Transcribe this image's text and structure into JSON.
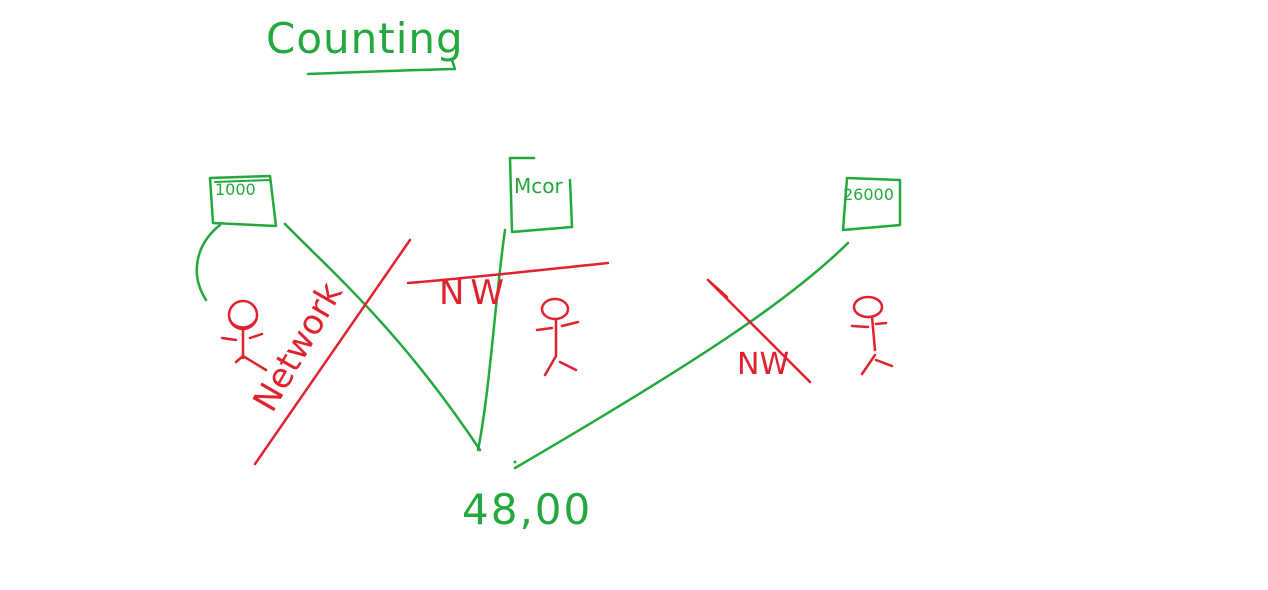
{
  "title": "Counting",
  "colors": {
    "ink_green": "#22a83c",
    "ink_red": "#e0222e",
    "background": "#ffffff"
  },
  "boxes": [
    {
      "label": "1000"
    },
    {
      "label": "Mcor"
    },
    {
      "label": "26000"
    }
  ],
  "red_marks": {
    "network": "Network",
    "nw_left": "NW",
    "nw_right": "NW"
  },
  "total": "48,00"
}
